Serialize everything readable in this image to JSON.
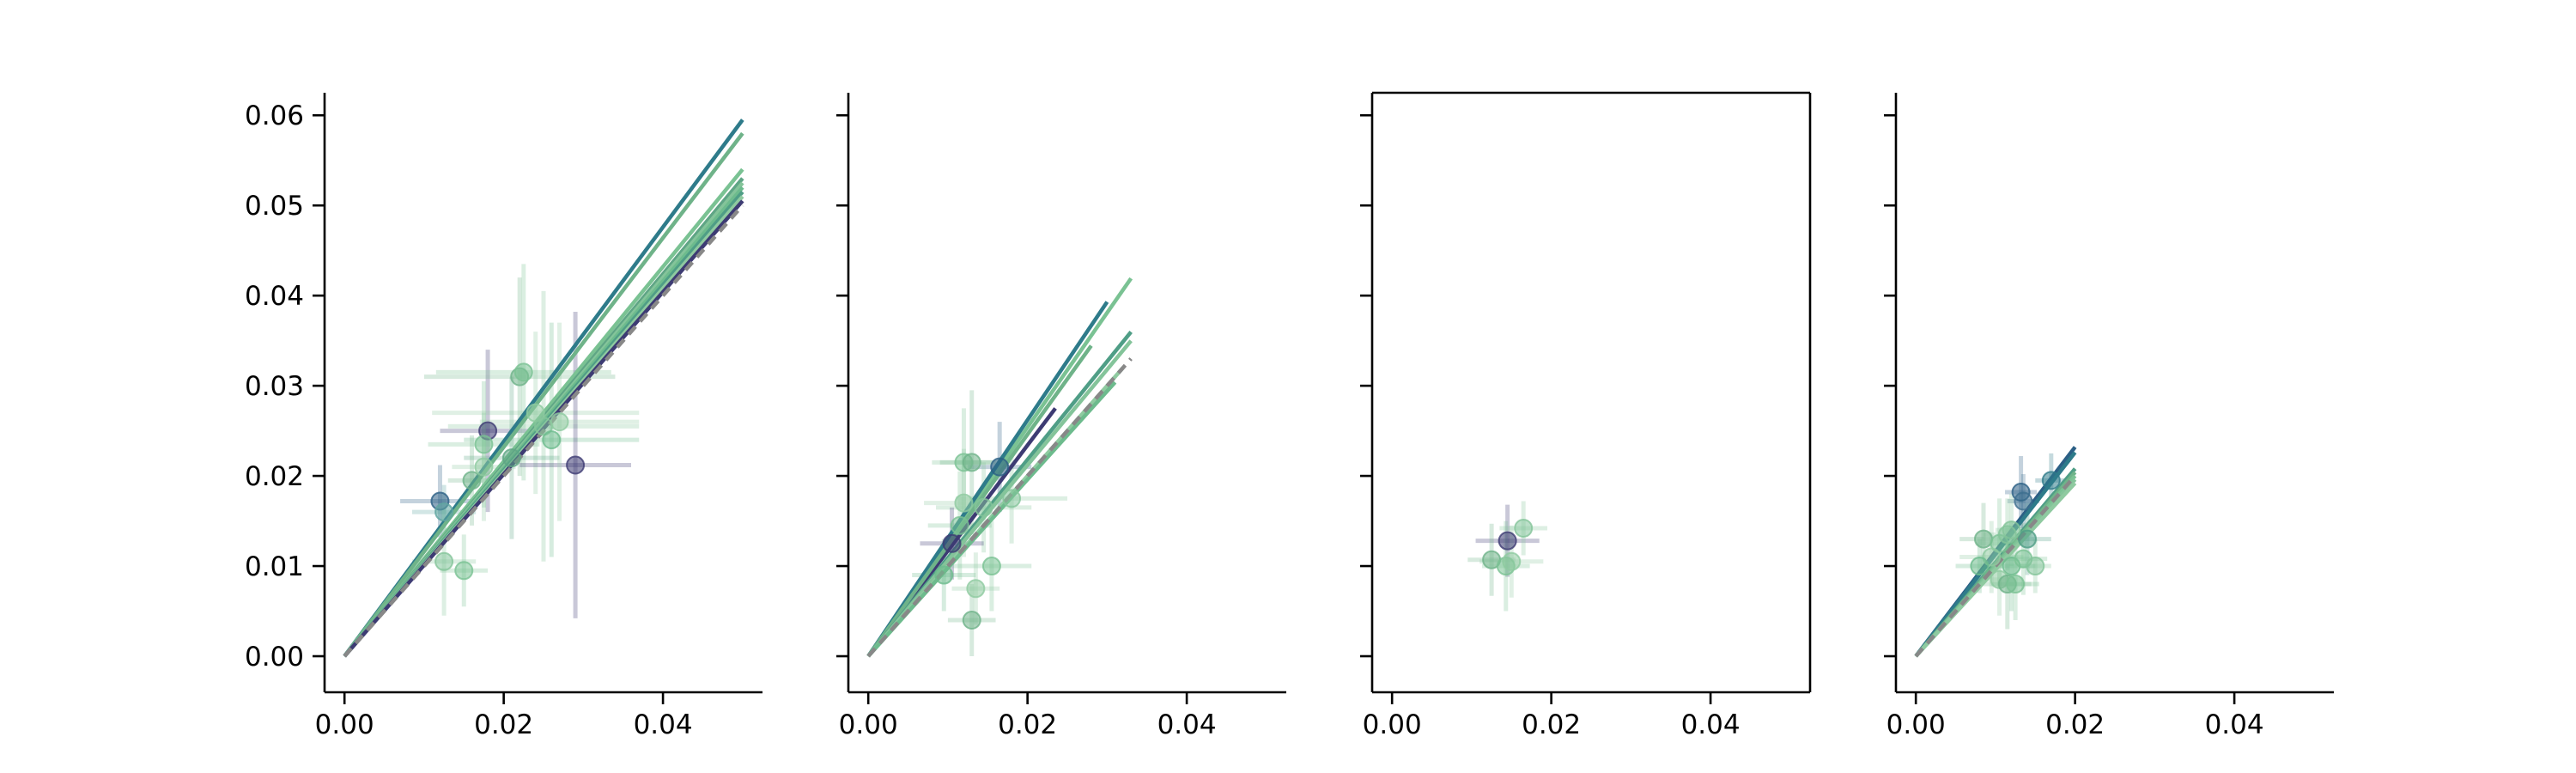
{
  "chart_data": [
    {
      "type": "scatter",
      "xlim": [
        -0.0025,
        0.0525
      ],
      "ylim": [
        -0.004,
        0.0625
      ],
      "x_ticks": [
        0.0,
        0.02,
        0.04
      ],
      "x_tick_labels": [
        "0.00",
        "0.02",
        "0.04"
      ],
      "y_ticks": [
        0.0,
        0.01,
        0.02,
        0.03,
        0.04,
        0.05,
        0.06
      ],
      "y_tick_labels": [
        "0.00",
        "0.01",
        "0.02",
        "0.03",
        "0.04",
        "0.05",
        "0.06"
      ],
      "show_y_tick_labels": true,
      "frame": "open",
      "grid": false,
      "identity_line_end": 0.05,
      "lines": [
        {
          "x_end": 0.05,
          "slope": 1.19,
          "color": "#2e7b8a"
        },
        {
          "x_end": 0.05,
          "slope": 1.16,
          "color": "#6fb389"
        },
        {
          "x_end": 0.05,
          "slope": 1.08,
          "color": "#7ac293"
        },
        {
          "x_end": 0.05,
          "slope": 1.06,
          "color": "#5fa585"
        },
        {
          "x_end": 0.05,
          "slope": 1.05,
          "color": "#84c49a"
        },
        {
          "x_end": 0.05,
          "slope": 1.04,
          "color": "#6dbb8d"
        },
        {
          "x_end": 0.05,
          "slope": 1.03,
          "color": "#4f9e86"
        },
        {
          "x_end": 0.05,
          "slope": 1.02,
          "color": "#8fcaa0"
        },
        {
          "x_end": 0.05,
          "slope": 1.01,
          "color": "#3d3b73"
        }
      ],
      "points": [
        {
          "x": 0.012,
          "y": 0.0172,
          "xerr": 0.005,
          "yerr": 0.004,
          "color": "#2b5f85"
        },
        {
          "x": 0.0125,
          "y": 0.016,
          "xerr": 0.004,
          "yerr": 0.003,
          "color": "#5fa5a0"
        },
        {
          "x": 0.018,
          "y": 0.025,
          "xerr": 0.006,
          "yerr": 0.009,
          "color": "#3d3b73"
        },
        {
          "x": 0.0175,
          "y": 0.0235,
          "xerr": 0.007,
          "yerr": 0.007,
          "color": "#7ac293"
        },
        {
          "x": 0.022,
          "y": 0.031,
          "xerr": 0.012,
          "yerr": 0.011,
          "color": "#6fb389"
        },
        {
          "x": 0.0225,
          "y": 0.0315,
          "xerr": 0.011,
          "yerr": 0.012,
          "color": "#7ac293"
        },
        {
          "x": 0.024,
          "y": 0.027,
          "xerr": 0.013,
          "yerr": 0.009,
          "color": "#8fcaa0"
        },
        {
          "x": 0.025,
          "y": 0.0255,
          "xerr": 0.012,
          "yerr": 0.015,
          "color": "#84c49a"
        },
        {
          "x": 0.026,
          "y": 0.024,
          "xerr": 0.011,
          "yerr": 0.013,
          "color": "#6dbb8d"
        },
        {
          "x": 0.021,
          "y": 0.022,
          "xerr": 0.006,
          "yerr": 0.009,
          "color": "#5fa585"
        },
        {
          "x": 0.029,
          "y": 0.0212,
          "xerr": 0.007,
          "yerr": 0.017,
          "color": "#3d3b73"
        },
        {
          "x": 0.027,
          "y": 0.026,
          "xerr": 0.01,
          "yerr": 0.011,
          "color": "#8fcaa0"
        },
        {
          "x": 0.0125,
          "y": 0.0105,
          "xerr": 0.004,
          "yerr": 0.006,
          "color": "#84c49a"
        },
        {
          "x": 0.015,
          "y": 0.0095,
          "xerr": 0.003,
          "yerr": 0.004,
          "color": "#7ac293"
        },
        {
          "x": 0.016,
          "y": 0.0195,
          "xerr": 0.003,
          "yerr": 0.005,
          "color": "#6fb389"
        },
        {
          "x": 0.0175,
          "y": 0.021,
          "xerr": 0.004,
          "yerr": 0.006,
          "color": "#8fcaa0"
        }
      ]
    },
    {
      "type": "scatter",
      "xlim": [
        -0.0025,
        0.0525
      ],
      "ylim": [
        -0.004,
        0.0625
      ],
      "x_ticks": [
        0.0,
        0.02,
        0.04
      ],
      "x_tick_labels": [
        "0.00",
        "0.02",
        "0.04"
      ],
      "y_ticks": [
        0.0,
        0.01,
        0.02,
        0.03,
        0.04,
        0.05,
        0.06
      ],
      "y_tick_labels": [
        "",
        "",
        "",
        "",
        "",
        "",
        ""
      ],
      "show_y_tick_labels": false,
      "frame": "open",
      "grid": false,
      "identity_line_end": 0.033,
      "lines": [
        {
          "x_end": 0.033,
          "slope": 1.27,
          "color": "#7ac293"
        },
        {
          "x_end": 0.03,
          "slope": 1.31,
          "color": "#2e7b8a"
        },
        {
          "x_end": 0.0235,
          "slope": 1.17,
          "color": "#3d3b73"
        },
        {
          "x_end": 0.028,
          "slope": 1.23,
          "color": "#6fb389"
        },
        {
          "x_end": 0.033,
          "slope": 1.09,
          "color": "#4f9e86"
        },
        {
          "x_end": 0.033,
          "slope": 1.06,
          "color": "#84c49a"
        },
        {
          "x_end": 0.032,
          "slope": 1.0,
          "color": "#8fcaa0"
        },
        {
          "x_end": 0.031,
          "slope": 0.98,
          "color": "#6dbb8d"
        }
      ],
      "points": [
        {
          "x": 0.012,
          "y": 0.0215,
          "xerr": 0.004,
          "yerr": 0.006,
          "color": "#7ac293"
        },
        {
          "x": 0.013,
          "y": 0.0215,
          "xerr": 0.004,
          "yerr": 0.008,
          "color": "#6fb389"
        },
        {
          "x": 0.0165,
          "y": 0.021,
          "xerr": 0.004,
          "yerr": 0.005,
          "color": "#2b5f85"
        },
        {
          "x": 0.012,
          "y": 0.017,
          "xerr": 0.005,
          "yerr": 0.006,
          "color": "#8fcaa0"
        },
        {
          "x": 0.0145,
          "y": 0.0165,
          "xerr": 0.006,
          "yerr": 0.005,
          "color": "#84c49a"
        },
        {
          "x": 0.0105,
          "y": 0.0125,
          "xerr": 0.004,
          "yerr": 0.004,
          "color": "#3d3b73"
        },
        {
          "x": 0.0095,
          "y": 0.009,
          "xerr": 0.004,
          "yerr": 0.004,
          "color": "#6dbb8d"
        },
        {
          "x": 0.0155,
          "y": 0.01,
          "xerr": 0.005,
          "yerr": 0.005,
          "color": "#7ac293"
        },
        {
          "x": 0.0135,
          "y": 0.0075,
          "xerr": 0.003,
          "yerr": 0.004,
          "color": "#8fcaa0"
        },
        {
          "x": 0.013,
          "y": 0.004,
          "xerr": 0.003,
          "yerr": 0.004,
          "color": "#6fb389"
        },
        {
          "x": 0.018,
          "y": 0.0175,
          "xerr": 0.007,
          "yerr": 0.005,
          "color": "#84c49a"
        },
        {
          "x": 0.0115,
          "y": 0.0145,
          "xerr": 0.004,
          "yerr": 0.006,
          "color": "#7ac293"
        }
      ]
    },
    {
      "type": "scatter",
      "xlim": [
        -0.0025,
        0.0525
      ],
      "ylim": [
        -0.004,
        0.0625
      ],
      "x_ticks": [
        0.0,
        0.02,
        0.04
      ],
      "x_tick_labels": [
        "0.00",
        "0.02",
        "0.04"
      ],
      "y_ticks": [
        0.0,
        0.01,
        0.02,
        0.03,
        0.04,
        0.05,
        0.06
      ],
      "y_tick_labels": [
        "",
        "",
        "",
        "",
        "",
        "",
        ""
      ],
      "show_y_tick_labels": false,
      "frame": "full",
      "grid": false,
      "identity_line_end": 0,
      "lines": [],
      "points": [
        {
          "x": 0.0145,
          "y": 0.0128,
          "xerr": 0.004,
          "yerr": 0.004,
          "color": "#3d3b73"
        },
        {
          "x": 0.0165,
          "y": 0.0142,
          "xerr": 0.003,
          "yerr": 0.003,
          "color": "#84c49a"
        },
        {
          "x": 0.0125,
          "y": 0.0107,
          "xerr": 0.003,
          "yerr": 0.004,
          "color": "#6fb389"
        },
        {
          "x": 0.0143,
          "y": 0.01,
          "xerr": 0.003,
          "yerr": 0.005,
          "color": "#7ac293"
        },
        {
          "x": 0.015,
          "y": 0.0105,
          "xerr": 0.004,
          "yerr": 0.004,
          "color": "#8fcaa0"
        }
      ]
    },
    {
      "type": "scatter",
      "xlim": [
        -0.0025,
        0.0525
      ],
      "ylim": [
        -0.004,
        0.0625
      ],
      "x_ticks": [
        0.0,
        0.02,
        0.04
      ],
      "x_tick_labels": [
        "0.00",
        "0.02",
        "0.04"
      ],
      "y_ticks": [
        0.0,
        0.01,
        0.02,
        0.03,
        0.04,
        0.05,
        0.06
      ],
      "y_tick_labels": [
        "",
        "",
        "",
        "",
        "",
        "",
        ""
      ],
      "show_y_tick_labels": false,
      "frame": "open",
      "grid": false,
      "identity_line_end": 0.02,
      "lines": [
        {
          "x_end": 0.02,
          "slope": 1.16,
          "color": "#2b5f85"
        },
        {
          "x_end": 0.02,
          "slope": 1.13,
          "color": "#2e7b8a"
        },
        {
          "x_end": 0.02,
          "slope": 1.04,
          "color": "#4f9e86"
        },
        {
          "x_end": 0.02,
          "slope": 1.02,
          "color": "#6fb389"
        },
        {
          "x_end": 0.02,
          "slope": 1.0,
          "color": "#7ac293"
        },
        {
          "x_end": 0.02,
          "slope": 0.98,
          "color": "#84c49a"
        },
        {
          "x_end": 0.02,
          "slope": 0.96,
          "color": "#8fcaa0"
        }
      ],
      "points": [
        {
          "x": 0.0132,
          "y": 0.0182,
          "xerr": 0.002,
          "yerr": 0.004,
          "color": "#2b5f85"
        },
        {
          "x": 0.0135,
          "y": 0.0172,
          "xerr": 0.002,
          "yerr": 0.003,
          "color": "#3d6f8f"
        },
        {
          "x": 0.017,
          "y": 0.0195,
          "xerr": 0.002,
          "yerr": 0.003,
          "color": "#2e7b8a"
        },
        {
          "x": 0.0085,
          "y": 0.013,
          "xerr": 0.003,
          "yerr": 0.004,
          "color": "#6fb389"
        },
        {
          "x": 0.0105,
          "y": 0.0125,
          "xerr": 0.003,
          "yerr": 0.005,
          "color": "#7ac293"
        },
        {
          "x": 0.0115,
          "y": 0.0135,
          "xerr": 0.003,
          "yerr": 0.004,
          "color": "#84c49a"
        },
        {
          "x": 0.0095,
          "y": 0.011,
          "xerr": 0.004,
          "yerr": 0.004,
          "color": "#8fcaa0"
        },
        {
          "x": 0.012,
          "y": 0.01,
          "xerr": 0.003,
          "yerr": 0.005,
          "color": "#6dbb8d"
        },
        {
          "x": 0.0135,
          "y": 0.0108,
          "xerr": 0.003,
          "yerr": 0.004,
          "color": "#7ac293"
        },
        {
          "x": 0.015,
          "y": 0.01,
          "xerr": 0.002,
          "yerr": 0.003,
          "color": "#84c49a"
        },
        {
          "x": 0.0105,
          "y": 0.0085,
          "xerr": 0.003,
          "yerr": 0.004,
          "color": "#8fcaa0"
        },
        {
          "x": 0.0115,
          "y": 0.008,
          "xerr": 0.003,
          "yerr": 0.005,
          "color": "#6fb389"
        },
        {
          "x": 0.0125,
          "y": 0.008,
          "xerr": 0.003,
          "yerr": 0.004,
          "color": "#7ac293"
        },
        {
          "x": 0.008,
          "y": 0.01,
          "xerr": 0.003,
          "yerr": 0.003,
          "color": "#6dbb8d"
        },
        {
          "x": 0.014,
          "y": 0.013,
          "xerr": 0.003,
          "yerr": 0.004,
          "color": "#4f9e86"
        },
        {
          "x": 0.012,
          "y": 0.014,
          "xerr": 0.002,
          "yerr": 0.004,
          "color": "#84c49a"
        }
      ]
    }
  ]
}
